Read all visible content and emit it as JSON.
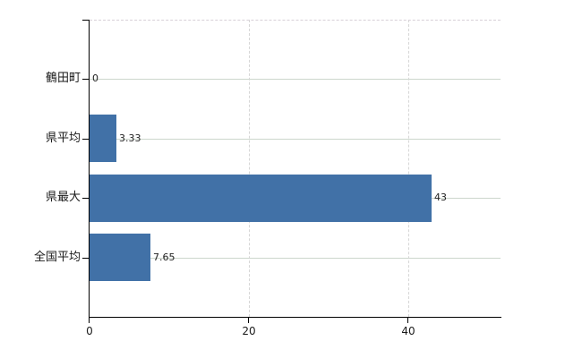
{
  "chart_data": {
    "type": "bar",
    "orientation": "horizontal",
    "title": "",
    "xlabel": "",
    "ylabel": "",
    "categories": [
      "鶴田町",
      "県平均",
      "県最大",
      "全国平均"
    ],
    "values": [
      0,
      3.33,
      43,
      7.65
    ],
    "value_labels": [
      "0",
      "3.33",
      "43",
      "7.65"
    ],
    "xticks": [
      0,
      20,
      40
    ],
    "xtick_labels": [
      "0",
      "20",
      "40"
    ],
    "xlim": [
      0,
      51.6
    ],
    "grid": true,
    "legend": false,
    "colors": {
      "bar": "#4171a7",
      "axis": "#000000",
      "h_gridline": "#ccd6cc",
      "v_gridline": "#d6d6d6",
      "top_border": "#d8d0d8",
      "category_text": "#1a1a1a",
      "tick_text": "#1a1a1a",
      "value_text": "#222222",
      "background": "#ffffff"
    }
  }
}
